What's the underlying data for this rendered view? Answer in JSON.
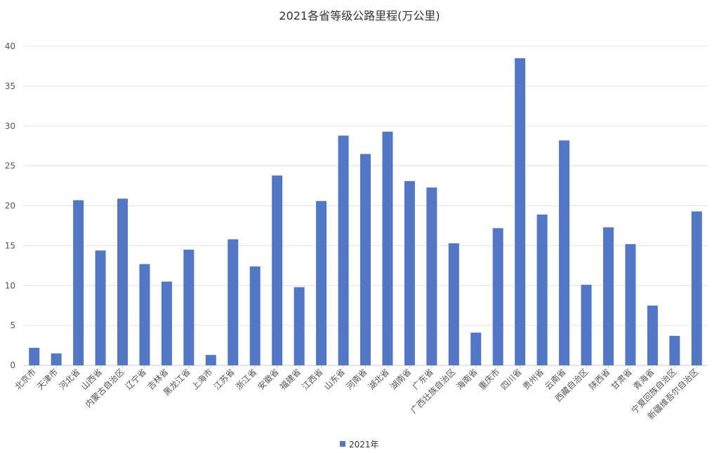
{
  "chart_data": {
    "type": "bar",
    "title": "2021各省等级公路里程(万公里)",
    "xlabel": "",
    "ylabel": "",
    "ylim": [
      0,
      40
    ],
    "y_ticks": [
      0,
      5,
      10,
      15,
      20,
      25,
      30,
      35,
      40
    ],
    "grid": true,
    "legend_position": "bottom",
    "categories": [
      "北京市",
      "天津市",
      "河北省",
      "山西省",
      "内蒙古自治区",
      "辽宁省",
      "吉林省",
      "黑龙江省",
      "上海市",
      "江苏省",
      "浙江省",
      "安徽省",
      "福建省",
      "江西省",
      "山东省",
      "河南省",
      "湖北省",
      "湖南省",
      "广东省",
      "广西壮族自治区",
      "海南省",
      "重庆市",
      "四川省",
      "贵州省",
      "云南省",
      "西藏自治区",
      "陕西省",
      "甘肃省",
      "青海省",
      "宁夏回族自治区",
      "新疆维吾尔自治区"
    ],
    "series": [
      {
        "name": "2021年",
        "color": "#5177c5",
        "values": [
          2.2,
          1.5,
          20.7,
          14.4,
          20.9,
          12.7,
          10.5,
          14.5,
          1.3,
          15.8,
          12.4,
          23.8,
          9.8,
          20.6,
          28.8,
          26.5,
          29.3,
          23.1,
          22.3,
          15.3,
          4.1,
          17.2,
          38.5,
          18.9,
          28.2,
          10.1,
          17.3,
          15.2,
          7.5,
          3.7,
          19.3
        ]
      }
    ]
  }
}
